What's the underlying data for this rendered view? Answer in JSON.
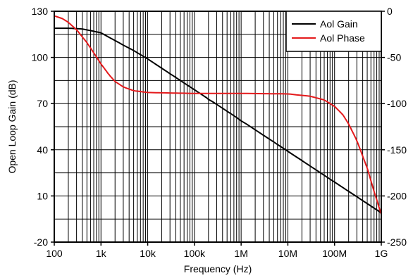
{
  "chart_data": {
    "type": "line",
    "xlabel": "Frequency (Hz)",
    "ylabel": "Open Loop Gain (dB)",
    "xscale": "log",
    "xlim": [
      100,
      1000000000
    ],
    "ylim": [
      -20,
      130
    ],
    "y2lim": [
      -250,
      0
    ],
    "grid": true,
    "legend_position": "top-right",
    "x_ticks": [
      100,
      1000,
      10000,
      100000,
      1000000,
      10000000,
      100000000,
      1000000000
    ],
    "x_tick_labels": [
      "100",
      "1k",
      "10k",
      "100k",
      "1M",
      "10M",
      "100M",
      "1G"
    ],
    "y_ticks": [
      -20,
      10,
      40,
      70,
      100,
      130
    ],
    "y_tick_labels": [
      "-20",
      "10",
      "40",
      "70",
      "100",
      "130"
    ],
    "y2_ticks": [
      -250,
      -200,
      -150,
      -100,
      -50,
      0
    ],
    "y2_tick_labels": [
      "-250",
      "-200",
      "-150",
      "-100",
      "-50",
      "0"
    ],
    "series": [
      {
        "name": "Aol Gain",
        "color": "#000000",
        "axis": "left",
        "x": [
          100,
          200,
          400,
          700,
          1000,
          1500,
          2000,
          3000,
          5000,
          10000,
          20000,
          50000,
          100000,
          200000,
          1000000,
          10000000,
          100000000,
          1000000000
        ],
        "y": [
          119,
          119,
          118.5,
          117,
          116,
          113,
          111,
          108,
          104.5,
          99,
          93,
          85,
          79,
          73,
          59,
          39,
          19,
          -1
        ]
      },
      {
        "name": "Aol Phase",
        "color": "#e41a1c",
        "axis": "right",
        "x": [
          100,
          150,
          200,
          300,
          500,
          700,
          1000,
          1500,
          2000,
          3000,
          5000,
          10000,
          30000,
          100000,
          300000,
          1000000,
          10000000,
          30000000,
          60000000,
          100000000,
          150000000,
          200000000,
          300000000,
          500000000,
          700000000,
          1000000000
        ],
        "y": [
          -5,
          -8,
          -12,
          -20,
          -34,
          -45,
          -57,
          -69,
          -76,
          -82,
          -86,
          -88,
          -88.5,
          -89,
          -89,
          -89,
          -89.5,
          -92,
          -96,
          -103,
          -112,
          -122,
          -140,
          -170,
          -195,
          -220
        ]
      }
    ]
  }
}
